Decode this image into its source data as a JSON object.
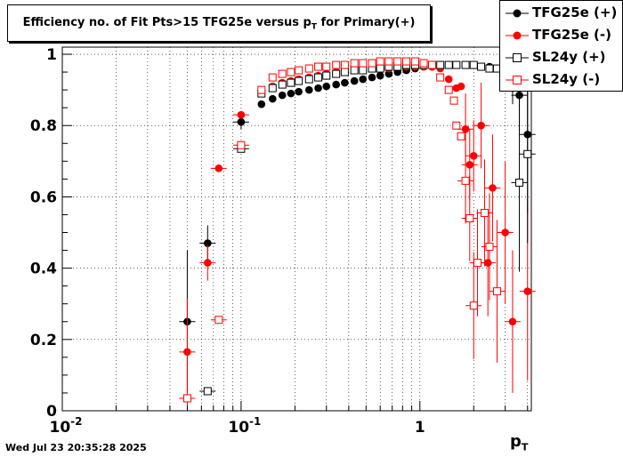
{
  "chart_data": {
    "type": "scatter",
    "title": "Efficiency no. of Fit Pts>15 TFG25e versus p",
    "title_sub": "T",
    "title_suffix": " for Primary(+)",
    "xlabel": "p",
    "xlabel_sub": "T",
    "ylabel": "",
    "xscale": "log",
    "xlim": [
      0.01,
      4.2
    ],
    "ylim": [
      0,
      1.02
    ],
    "grid": true,
    "legend_position": "top-right",
    "x_ticks": [
      {
        "value": 0.01,
        "base": "10",
        "exp": "-2"
      },
      {
        "value": 0.1,
        "base": "10",
        "exp": "-1"
      },
      {
        "value": 1,
        "base": "1",
        "exp": ""
      }
    ],
    "y_ticks": [
      "0",
      "0.2",
      "0.4",
      "0.6",
      "0.8",
      "1"
    ],
    "y_tick_values": [
      0,
      0.2,
      0.4,
      0.6,
      0.8,
      1.0
    ],
    "series": [
      {
        "name": "TFG25e (+)",
        "color": "#000000",
        "marker": "filled-circle",
        "points": [
          {
            "x": 0.05,
            "y": 0.25,
            "err": 0.2
          },
          {
            "x": 0.065,
            "y": 0.47,
            "err": 0.05
          },
          {
            "x": 0.1,
            "y": 0.81,
            "err": 0.02
          },
          {
            "x": 0.13,
            "y": 0.86
          },
          {
            "x": 0.15,
            "y": 0.875
          },
          {
            "x": 0.17,
            "y": 0.885
          },
          {
            "x": 0.19,
            "y": 0.89
          },
          {
            "x": 0.21,
            "y": 0.895
          },
          {
            "x": 0.24,
            "y": 0.9
          },
          {
            "x": 0.27,
            "y": 0.905
          },
          {
            "x": 0.3,
            "y": 0.91
          },
          {
            "x": 0.34,
            "y": 0.915
          },
          {
            "x": 0.38,
            "y": 0.92
          },
          {
            "x": 0.43,
            "y": 0.925
          },
          {
            "x": 0.48,
            "y": 0.93
          },
          {
            "x": 0.54,
            "y": 0.935
          },
          {
            "x": 0.6,
            "y": 0.94
          },
          {
            "x": 0.67,
            "y": 0.945
          },
          {
            "x": 0.75,
            "y": 0.95
          },
          {
            "x": 0.84,
            "y": 0.955
          },
          {
            "x": 0.94,
            "y": 0.96
          },
          {
            "x": 1.05,
            "y": 0.965
          },
          {
            "x": 1.17,
            "y": 0.965
          },
          {
            "x": 1.3,
            "y": 0.97
          },
          {
            "x": 1.45,
            "y": 0.97
          },
          {
            "x": 1.6,
            "y": 0.97
          },
          {
            "x": 1.8,
            "y": 0.97
          },
          {
            "x": 2.0,
            "y": 0.97
          },
          {
            "x": 2.2,
            "y": 0.965
          },
          {
            "x": 2.45,
            "y": 0.965
          },
          {
            "x": 2.7,
            "y": 0.96
          },
          {
            "x": 3.0,
            "y": 0.955
          },
          {
            "x": 3.3,
            "y": 0.94,
            "err": 0.05
          },
          {
            "x": 3.6,
            "y": 0.885,
            "err": 0.1
          },
          {
            "x": 4.0,
            "y": 0.775,
            "err": 0.22
          }
        ]
      },
      {
        "name": "TFG25e (-)",
        "color": "#ff0000",
        "marker": "filled-circle",
        "points": [
          {
            "x": 0.05,
            "y": 0.165,
            "err": 0.15
          },
          {
            "x": 0.065,
            "y": 0.415,
            "err": 0.05
          },
          {
            "x": 0.075,
            "y": 0.68,
            "err": 0.01
          },
          {
            "x": 0.1,
            "y": 0.83,
            "err": 0.01
          },
          {
            "x": 0.13,
            "y": 0.895
          },
          {
            "x": 0.15,
            "y": 0.91
          },
          {
            "x": 0.17,
            "y": 0.92
          },
          {
            "x": 0.19,
            "y": 0.925
          },
          {
            "x": 0.21,
            "y": 0.93
          },
          {
            "x": 0.24,
            "y": 0.935
          },
          {
            "x": 0.27,
            "y": 0.94
          },
          {
            "x": 0.3,
            "y": 0.945
          },
          {
            "x": 0.34,
            "y": 0.95
          },
          {
            "x": 0.38,
            "y": 0.95
          },
          {
            "x": 0.43,
            "y": 0.955
          },
          {
            "x": 0.48,
            "y": 0.955
          },
          {
            "x": 0.54,
            "y": 0.96
          },
          {
            "x": 0.6,
            "y": 0.96
          },
          {
            "x": 0.67,
            "y": 0.96
          },
          {
            "x": 0.75,
            "y": 0.965
          },
          {
            "x": 0.84,
            "y": 0.965
          },
          {
            "x": 0.94,
            "y": 0.965
          },
          {
            "x": 1.05,
            "y": 0.965
          },
          {
            "x": 1.17,
            "y": 0.965
          },
          {
            "x": 1.3,
            "y": 0.96
          },
          {
            "x": 1.45,
            "y": 0.93
          },
          {
            "x": 1.6,
            "y": 0.905
          },
          {
            "x": 1.7,
            "y": 0.91
          },
          {
            "x": 1.8,
            "y": 0.79,
            "err": 0.1
          },
          {
            "x": 1.9,
            "y": 0.69,
            "err": 0.1
          },
          {
            "x": 2.0,
            "y": 0.715,
            "err": 0.1
          },
          {
            "x": 2.2,
            "y": 0.8,
            "err": 0.12
          },
          {
            "x": 2.4,
            "y": 0.415,
            "err": 0.15
          },
          {
            "x": 2.55,
            "y": 0.625,
            "err": 0.15
          },
          {
            "x": 3.0,
            "y": 0.5,
            "err": 0.2
          },
          {
            "x": 3.3,
            "y": 0.25,
            "err": 0.2
          },
          {
            "x": 4.0,
            "y": 0.335,
            "err": 0.25
          }
        ]
      },
      {
        "name": "SL24y (+)",
        "color": "#000000",
        "marker": "open-square",
        "points": [
          {
            "x": 0.065,
            "y": 0.055,
            "err": 0.01
          },
          {
            "x": 0.1,
            "y": 0.735,
            "err": 0.01
          },
          {
            "x": 0.13,
            "y": 0.89
          },
          {
            "x": 0.15,
            "y": 0.905
          },
          {
            "x": 0.17,
            "y": 0.915
          },
          {
            "x": 0.19,
            "y": 0.92
          },
          {
            "x": 0.21,
            "y": 0.925
          },
          {
            "x": 0.24,
            "y": 0.93
          },
          {
            "x": 0.27,
            "y": 0.935
          },
          {
            "x": 0.3,
            "y": 0.94
          },
          {
            "x": 0.34,
            "y": 0.945
          },
          {
            "x": 0.38,
            "y": 0.95
          },
          {
            "x": 0.43,
            "y": 0.955
          },
          {
            "x": 0.48,
            "y": 0.955
          },
          {
            "x": 0.54,
            "y": 0.96
          },
          {
            "x": 0.6,
            "y": 0.96
          },
          {
            "x": 0.67,
            "y": 0.965
          },
          {
            "x": 0.75,
            "y": 0.965
          },
          {
            "x": 0.84,
            "y": 0.97
          },
          {
            "x": 0.94,
            "y": 0.97
          },
          {
            "x": 1.05,
            "y": 0.97
          },
          {
            "x": 1.17,
            "y": 0.97
          },
          {
            "x": 1.3,
            "y": 0.97
          },
          {
            "x": 1.45,
            "y": 0.97
          },
          {
            "x": 1.6,
            "y": 0.97
          },
          {
            "x": 1.8,
            "y": 0.97
          },
          {
            "x": 2.0,
            "y": 0.97
          },
          {
            "x": 2.2,
            "y": 0.965
          },
          {
            "x": 2.45,
            "y": 0.96
          },
          {
            "x": 2.7,
            "y": 0.96
          },
          {
            "x": 3.0,
            "y": 0.95
          },
          {
            "x": 3.3,
            "y": 0.91,
            "err": 0.05
          },
          {
            "x": 3.6,
            "y": 0.64,
            "err": 0.25
          },
          {
            "x": 4.0,
            "y": 0.72,
            "err": 0.25
          }
        ]
      },
      {
        "name": "SL24y (-)",
        "color": "#ff0000",
        "marker": "open-square",
        "points": [
          {
            "x": 0.05,
            "y": 0.035,
            "err": 0.01
          },
          {
            "x": 0.075,
            "y": 0.255,
            "err": 0.01
          },
          {
            "x": 0.1,
            "y": 0.745,
            "err": 0.01
          },
          {
            "x": 0.13,
            "y": 0.9
          },
          {
            "x": 0.15,
            "y": 0.935
          },
          {
            "x": 0.17,
            "y": 0.945
          },
          {
            "x": 0.19,
            "y": 0.95
          },
          {
            "x": 0.21,
            "y": 0.955
          },
          {
            "x": 0.24,
            "y": 0.96
          },
          {
            "x": 0.27,
            "y": 0.965
          },
          {
            "x": 0.3,
            "y": 0.965
          },
          {
            "x": 0.34,
            "y": 0.97
          },
          {
            "x": 0.38,
            "y": 0.97
          },
          {
            "x": 0.43,
            "y": 0.975
          },
          {
            "x": 0.48,
            "y": 0.975
          },
          {
            "x": 0.54,
            "y": 0.975
          },
          {
            "x": 0.6,
            "y": 0.98
          },
          {
            "x": 0.67,
            "y": 0.98
          },
          {
            "x": 0.75,
            "y": 0.98
          },
          {
            "x": 0.84,
            "y": 0.98
          },
          {
            "x": 0.94,
            "y": 0.98
          },
          {
            "x": 1.05,
            "y": 0.975
          },
          {
            "x": 1.17,
            "y": 0.97
          },
          {
            "x": 1.3,
            "y": 0.935
          },
          {
            "x": 1.45,
            "y": 0.9
          },
          {
            "x": 1.55,
            "y": 0.87
          },
          {
            "x": 1.6,
            "y": 0.8
          },
          {
            "x": 1.7,
            "y": 0.77
          },
          {
            "x": 1.8,
            "y": 0.645,
            "err": 0.12
          },
          {
            "x": 1.9,
            "y": 0.54,
            "err": 0.12
          },
          {
            "x": 2.0,
            "y": 0.295,
            "err": 0.15
          },
          {
            "x": 2.1,
            "y": 0.415,
            "err": 0.15
          },
          {
            "x": 2.3,
            "y": 0.555,
            "err": 0.15
          },
          {
            "x": 2.45,
            "y": 0.46,
            "err": 0.15
          },
          {
            "x": 2.7,
            "y": 0.335,
            "err": 0.2
          }
        ]
      }
    ]
  },
  "timestamp": "Wed Jul 23 20:35:28 2025"
}
